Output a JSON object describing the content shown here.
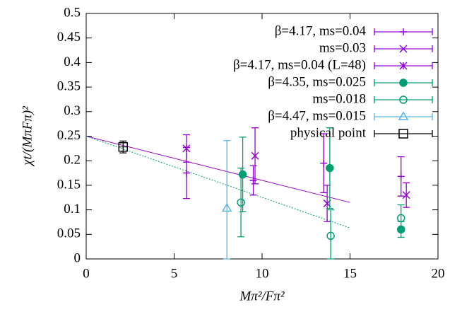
{
  "chart_data": {
    "type": "scatter",
    "xlabel": "Mπ²/Fπ²",
    "ylabel": "χt/(MπFπ)²",
    "xlim": [
      0,
      20
    ],
    "ylim": [
      0,
      0.5
    ],
    "xticks": [
      0,
      5,
      10,
      15,
      20
    ],
    "yticks": [
      0,
      0.05,
      0.1,
      0.15,
      0.2,
      0.25,
      0.3,
      0.35,
      0.4,
      0.45,
      0.5
    ],
    "legend": "top-right",
    "series": [
      {
        "name": "β=4.17, ms=0.04",
        "color": "#9400d3",
        "marker": "plus",
        "x": [
          5.7,
          9.5,
          13.5,
          17.9
        ],
        "values": [
          0.175,
          0.16,
          0.195,
          0.168
        ],
        "errors": [
          0.052,
          0.03,
          0.06,
          0.04
        ]
      },
      {
        "name": "ms=0.03",
        "color": "#9400d3",
        "marker": "cross",
        "x": [
          9.6,
          13.7,
          18.2
        ],
        "values": [
          0.21,
          0.113,
          0.13
        ],
        "errors": [
          0.057,
          0.037,
          0.025
        ]
      },
      {
        "name": "β=4.17, ms=0.04 (L=48)",
        "color": "#9400d3",
        "marker": "star",
        "x": [
          5.7
        ],
        "values": [
          0.225
        ],
        "errors": [
          0.028
        ]
      },
      {
        "name": "β=4.35, ms=0.025",
        "color": "#009e73",
        "marker": "filled-circle",
        "x": [
          8.9,
          13.85,
          17.9
        ],
        "values": [
          0.172,
          0.185,
          0.06
        ],
        "errors": [
          0.076,
          0.082,
          0.016
        ]
      },
      {
        "name": "ms=0.018",
        "color": "#009e73",
        "marker": "open-circle",
        "x": [
          8.8,
          13.9,
          17.9
        ],
        "values": [
          0.115,
          0.047,
          0.083
        ],
        "errors": [
          0.07,
          0.053,
          0.027
        ]
      },
      {
        "name": "β=4.47, ms=0.015",
        "color": "#56b4e9",
        "marker": "triangle",
        "x": [
          8.0
        ],
        "values": [
          0.103
        ],
        "errors": [
          0.138
        ]
      },
      {
        "name": "physical point",
        "color": "#000000",
        "marker": "square",
        "x": [
          2.1
        ],
        "values": [
          0.228
        ],
        "errors": [
          0.012
        ]
      }
    ],
    "fit_lines": [
      {
        "color": "#9400d3",
        "dash": false,
        "x": [
          0,
          15
        ],
        "values": [
          0.25,
          0.115
        ]
      },
      {
        "color": "#009e73",
        "dash": true,
        "x": [
          0,
          15
        ],
        "values": [
          0.25,
          0.063
        ]
      }
    ]
  }
}
